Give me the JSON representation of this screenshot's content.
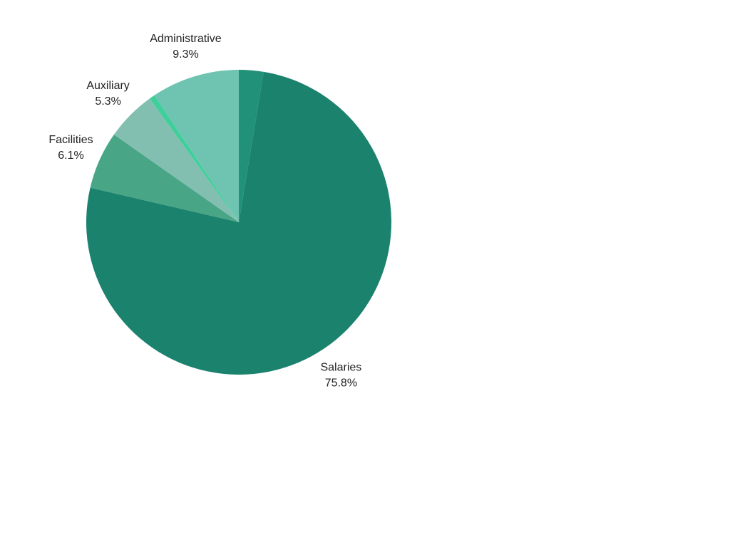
{
  "chart_data": {
    "type": "pie",
    "categories": [
      null,
      "Salaries",
      "Facilities",
      "Auxiliary",
      null,
      "Administrative"
    ],
    "values": [
      2.6,
      75.8,
      6.1,
      5.3,
      0.6,
      9.3
    ],
    "value_labels": [
      null,
      "75.8%",
      "6.1%",
      "5.3%",
      null,
      "9.3%"
    ],
    "colors": [
      "#21917a",
      "#1b826e",
      "#48a586",
      "#82bfb1",
      "#3ecf9a",
      "#6fc4b1"
    ]
  }
}
